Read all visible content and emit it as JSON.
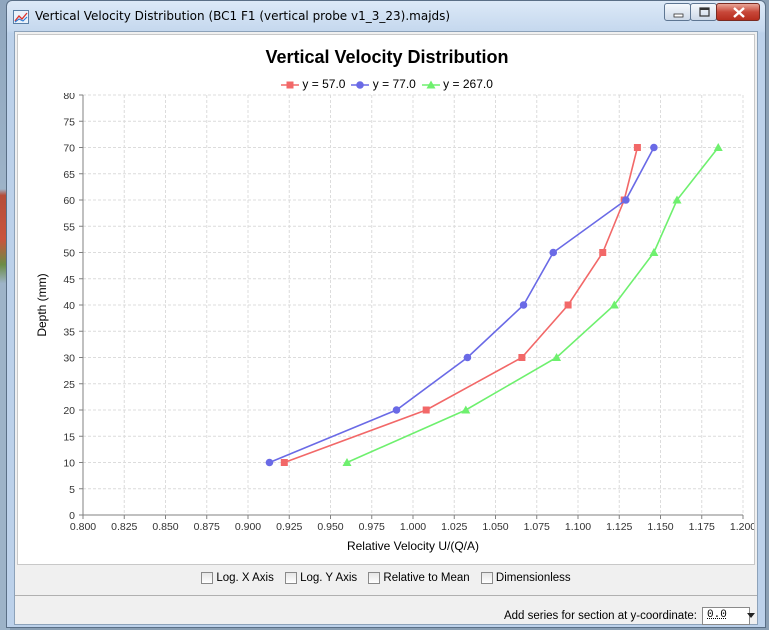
{
  "window": {
    "title": "Vertical Velocity Distribution (BC1 F1 (vertical probe v1_3_23).majds)",
    "icon": "chart-window-icon"
  },
  "chart_data": {
    "type": "line",
    "title": "Vertical Velocity Distribution",
    "xlabel": "Relative Velocity U/(Q/A)",
    "ylabel": "Depth (mm)",
    "xlim": [
      0.8,
      1.2
    ],
    "ylim": [
      0,
      80
    ],
    "xticks": [
      "0.800",
      "0.825",
      "0.850",
      "0.875",
      "0.900",
      "0.925",
      "0.950",
      "0.975",
      "1.000",
      "1.025",
      "1.050",
      "1.075",
      "1.100",
      "1.125",
      "1.150",
      "1.175",
      "1.200"
    ],
    "yticks": [
      "0",
      "5",
      "10",
      "15",
      "20",
      "25",
      "30",
      "35",
      "40",
      "45",
      "50",
      "55",
      "60",
      "65",
      "70",
      "75",
      "80"
    ],
    "grid": true,
    "legend_position": "top-center",
    "series": [
      {
        "name": "y = 57.0",
        "color": "#f26868",
        "marker": "square",
        "x": [
          0.922,
          1.008,
          1.066,
          1.094,
          1.115,
          1.128,
          1.136
        ],
        "y": [
          10,
          20,
          30,
          40,
          50,
          60,
          70
        ]
      },
      {
        "name": "y = 77.0",
        "color": "#6a6ae6",
        "marker": "circle",
        "x": [
          0.913,
          0.99,
          1.033,
          1.067,
          1.085,
          1.129,
          1.146
        ],
        "y": [
          10,
          20,
          30,
          40,
          50,
          60,
          70
        ]
      },
      {
        "name": "y = 267.0",
        "color": "#6ef06e",
        "marker": "triangle",
        "x": [
          0.96,
          1.032,
          1.087,
          1.122,
          1.146,
          1.16,
          1.185
        ],
        "y": [
          10,
          20,
          30,
          40,
          50,
          60,
          70
        ]
      }
    ]
  },
  "options": {
    "log_x": "Log. X Axis",
    "log_y": "Log. Y Axis",
    "relative_to_mean": "Relative to Mean",
    "dimensionless": "Dimensionless"
  },
  "add_series": {
    "label": "Add series for section at y-coordinate:",
    "value": "0.0"
  }
}
